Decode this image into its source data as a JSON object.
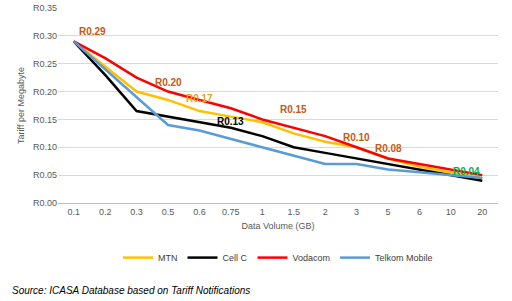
{
  "chart_data": {
    "type": "line",
    "x_label": "Data Volume (GB)",
    "y_label": "Tariff per Megabyte",
    "source": "Source: ICASA Database based on Tariff Notifications",
    "categories": [
      "0.1",
      "0.2",
      "0.3",
      "0.5",
      "0.6",
      "0.75",
      "1",
      "1.5",
      "2",
      "3",
      "5",
      "6",
      "10",
      "20"
    ],
    "series": [
      {
        "name": "MTN",
        "color": "#ffc000",
        "values": [
          0.29,
          0.245,
          0.2,
          0.185,
          0.165,
          0.155,
          0.145,
          0.125,
          0.11,
          0.1,
          0.08,
          0.065,
          0.055,
          0.045
        ]
      },
      {
        "name": "Cell C",
        "color": "#000000",
        "values": [
          0.29,
          0.23,
          0.165,
          0.155,
          0.145,
          0.135,
          0.12,
          0.1,
          0.09,
          0.08,
          0.07,
          0.06,
          0.05,
          0.04
        ]
      },
      {
        "name": "Vodacom",
        "color": "#ff0000",
        "values": [
          0.29,
          0.26,
          0.225,
          0.2,
          0.185,
          0.17,
          0.15,
          0.135,
          0.12,
          0.1,
          0.08,
          0.07,
          0.06,
          0.05
        ]
      },
      {
        "name": "Telkom Mobile",
        "color": "#5b9bd5",
        "values": [
          0.29,
          0.24,
          0.19,
          0.14,
          0.13,
          0.115,
          0.1,
          0.085,
          0.07,
          0.07,
          0.06,
          0.055,
          0.05,
          0.045
        ]
      }
    ],
    "ylim": [
      0,
      0.35
    ],
    "yticks": [
      {
        "value": 0,
        "label": "R0.00"
      },
      {
        "value": 0.05,
        "label": "R0.05"
      },
      {
        "value": 0.1,
        "label": "R0.10"
      },
      {
        "value": 0.15,
        "label": "R0.15"
      },
      {
        "value": 0.2,
        "label": "R0.20"
      },
      {
        "value": 0.25,
        "label": "R0.25"
      },
      {
        "value": 0.3,
        "label": "R0.30"
      },
      {
        "value": 0.35,
        "label": "R0.35"
      }
    ],
    "grid": true,
    "legend": "bottom",
    "annotations": [
      {
        "text": "R0.29",
        "x": "0.1",
        "y": 0.29,
        "color": "#c55a11"
      },
      {
        "text": "R0.20",
        "x": "0.5",
        "y": 0.2,
        "color": "#c55a11"
      },
      {
        "text": "R0.17",
        "x": "0.6",
        "y": 0.17,
        "color": "#e8a317"
      },
      {
        "text": "R0.13",
        "x": "0.75",
        "y": 0.13,
        "color": "#000000"
      },
      {
        "text": "R0.15",
        "x": "1.5",
        "y": 0.15,
        "color": "#c55a11"
      },
      {
        "text": "R0.10",
        "x": "3",
        "y": 0.1,
        "color": "#c55a11"
      },
      {
        "text": "R0.08",
        "x": "5",
        "y": 0.08,
        "color": "#c55a11"
      },
      {
        "text": "R0.04",
        "x": "20",
        "y": 0.04,
        "color": "#00b050"
      }
    ]
  }
}
